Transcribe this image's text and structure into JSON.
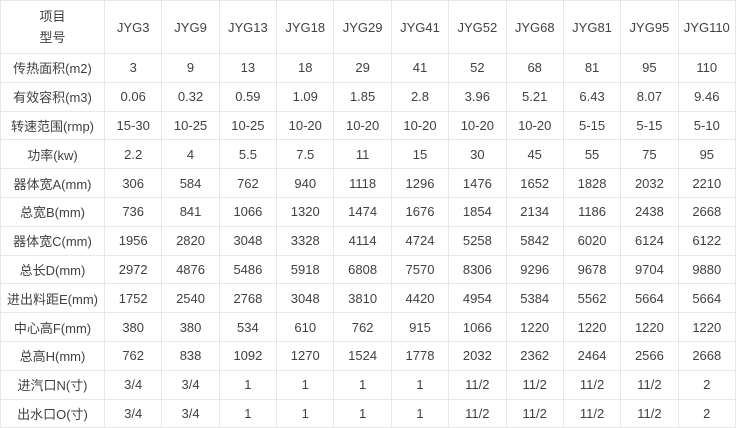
{
  "colors": {
    "border": "#e7e7e7",
    "text": "#414141",
    "background": "#ffffff"
  },
  "chart_data": {
    "type": "table",
    "corner": [
      "项目",
      "型号"
    ],
    "columns": [
      "JYG3",
      "JYG9",
      "JYG13",
      "JYG18",
      "JYG29",
      "JYG41",
      "JYG52",
      "JYG68",
      "JYG81",
      "JYG95",
      "JYG110"
    ],
    "rows": [
      {
        "label": "传热面积(m2)",
        "values": [
          "3",
          "9",
          "13",
          "18",
          "29",
          "41",
          "52",
          "68",
          "81",
          "95",
          "110"
        ]
      },
      {
        "label": "有效容积(m3)",
        "values": [
          "0.06",
          "0.32",
          "0.59",
          "1.09",
          "1.85",
          "2.8",
          "3.96",
          "5.21",
          "6.43",
          "8.07",
          "9.46"
        ]
      },
      {
        "label": "转速范围(rmp)",
        "values": [
          "15-30",
          "10-25",
          "10-25",
          "10-20",
          "10-20",
          "10-20",
          "10-20",
          "10-20",
          "5-15",
          "5-15",
          "5-10"
        ]
      },
      {
        "label": "功率(kw)",
        "values": [
          "2.2",
          "4",
          "5.5",
          "7.5",
          "11",
          "15",
          "30",
          "45",
          "55",
          "75",
          "95"
        ]
      },
      {
        "label": "器体宽A(mm)",
        "values": [
          "306",
          "584",
          "762",
          "940",
          "1118",
          "1296",
          "1476",
          "1652",
          "1828",
          "2032",
          "2210"
        ]
      },
      {
        "label": "总宽B(mm)",
        "values": [
          "736",
          "841",
          "1066",
          "1320",
          "1474",
          "1676",
          "1854",
          "2134",
          "1186",
          "2438",
          "2668"
        ]
      },
      {
        "label": "器体宽C(mm)",
        "values": [
          "1956",
          "2820",
          "3048",
          "3328",
          "4114",
          "4724",
          "5258",
          "5842",
          "6020",
          "6124",
          "6122"
        ]
      },
      {
        "label": "总长D(mm)",
        "values": [
          "2972",
          "4876",
          "5486",
          "5918",
          "6808",
          "7570",
          "8306",
          "9296",
          "9678",
          "9704",
          "9880"
        ]
      },
      {
        "label": "进出料距E(mm)",
        "values": [
          "1752",
          "2540",
          "2768",
          "3048",
          "3810",
          "4420",
          "4954",
          "5384",
          "5562",
          "5664",
          "5664"
        ]
      },
      {
        "label": "中心高F(mm)",
        "values": [
          "380",
          "380",
          "534",
          "610",
          "762",
          "915",
          "1066",
          "1220",
          "1220",
          "1220",
          "1220"
        ]
      },
      {
        "label": "总高H(mm)",
        "values": [
          "762",
          "838",
          "1092",
          "1270",
          "1524",
          "1778",
          "2032",
          "2362",
          "2464",
          "2566",
          "2668"
        ]
      },
      {
        "label": "进汽口N(寸)",
        "values": [
          "3/4",
          "3/4",
          "1",
          "1",
          "1",
          "1",
          "11/2",
          "11/2",
          "11/2",
          "11/2",
          "2"
        ]
      },
      {
        "label": "出水口O(寸)",
        "values": [
          "3/4",
          "3/4",
          "1",
          "1",
          "1",
          "1",
          "11/2",
          "11/2",
          "11/2",
          "11/2",
          "2"
        ]
      }
    ]
  }
}
